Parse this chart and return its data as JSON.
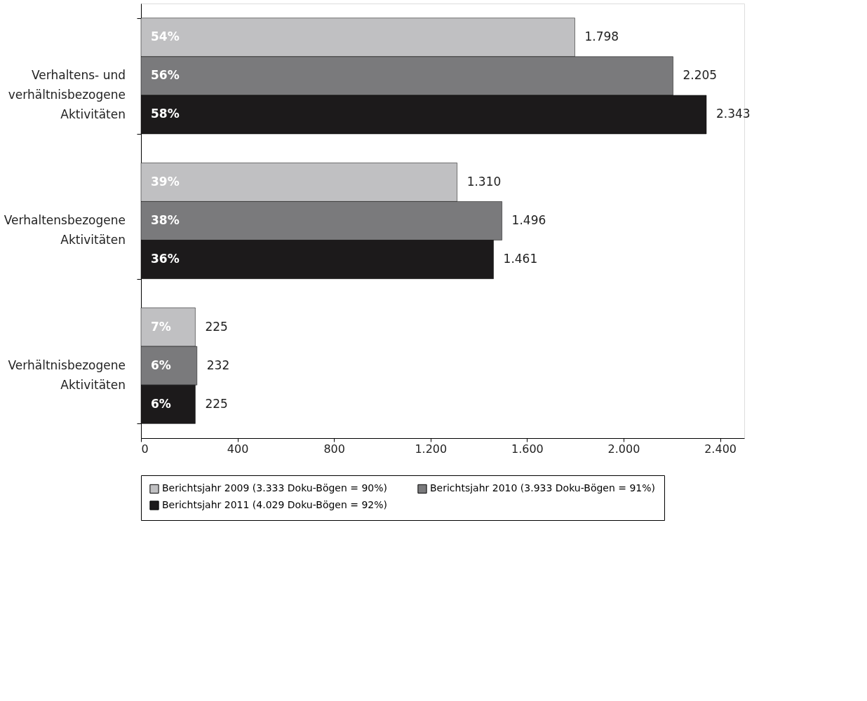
{
  "chart_data": {
    "type": "bar",
    "orientation": "horizontal",
    "categories": [
      "Verhaltens- und verhältnisbezogene Aktivitäten",
      "Verhaltensbezogene Aktivitäten",
      "Verhältnisbezogene Aktivitäten"
    ],
    "series": [
      {
        "name": "Berichtsjahr 2009 (3.333 Doku-Bögen = 90%)",
        "color": "#c0c0c2",
        "values": [
          1798,
          1310,
          225
        ],
        "value_labels": [
          "1.798",
          "1.310",
          "225"
        ]
      },
      {
        "name": "Berichtsjahr 2010 (3.933 Doku-Bögen = 91%)",
        "color": "#7a7a7c",
        "values": [
          2205,
          1496,
          232
        ],
        "value_labels": [
          "2.205",
          "1.496",
          "232"
        ]
      },
      {
        "name": "Berichtsjahr 2011 (4.029 Doku-Bögen = 92%)",
        "color": "#1c1a1b",
        "values": [
          2343,
          1461,
          225
        ],
        "value_labels": [
          "2.343",
          "1.461",
          "225"
        ]
      }
    ],
    "annotations": [
      "54%",
      "56%",
      "58%",
      "39%",
      "38%",
      "36%",
      "7%",
      "6%",
      "6%"
    ],
    "xlim": [
      0,
      2500
    ],
    "xticks": [
      0,
      400,
      800,
      {
        "value": 1200,
        "label": "1.200"
      },
      {
        "value": 1600,
        "label": "1.600"
      },
      {
        "value": 2000,
        "label": "2.000"
      },
      {
        "value": 2400,
        "label": "2.400"
      }
    ],
    "grid": false,
    "legend": "bottom"
  }
}
